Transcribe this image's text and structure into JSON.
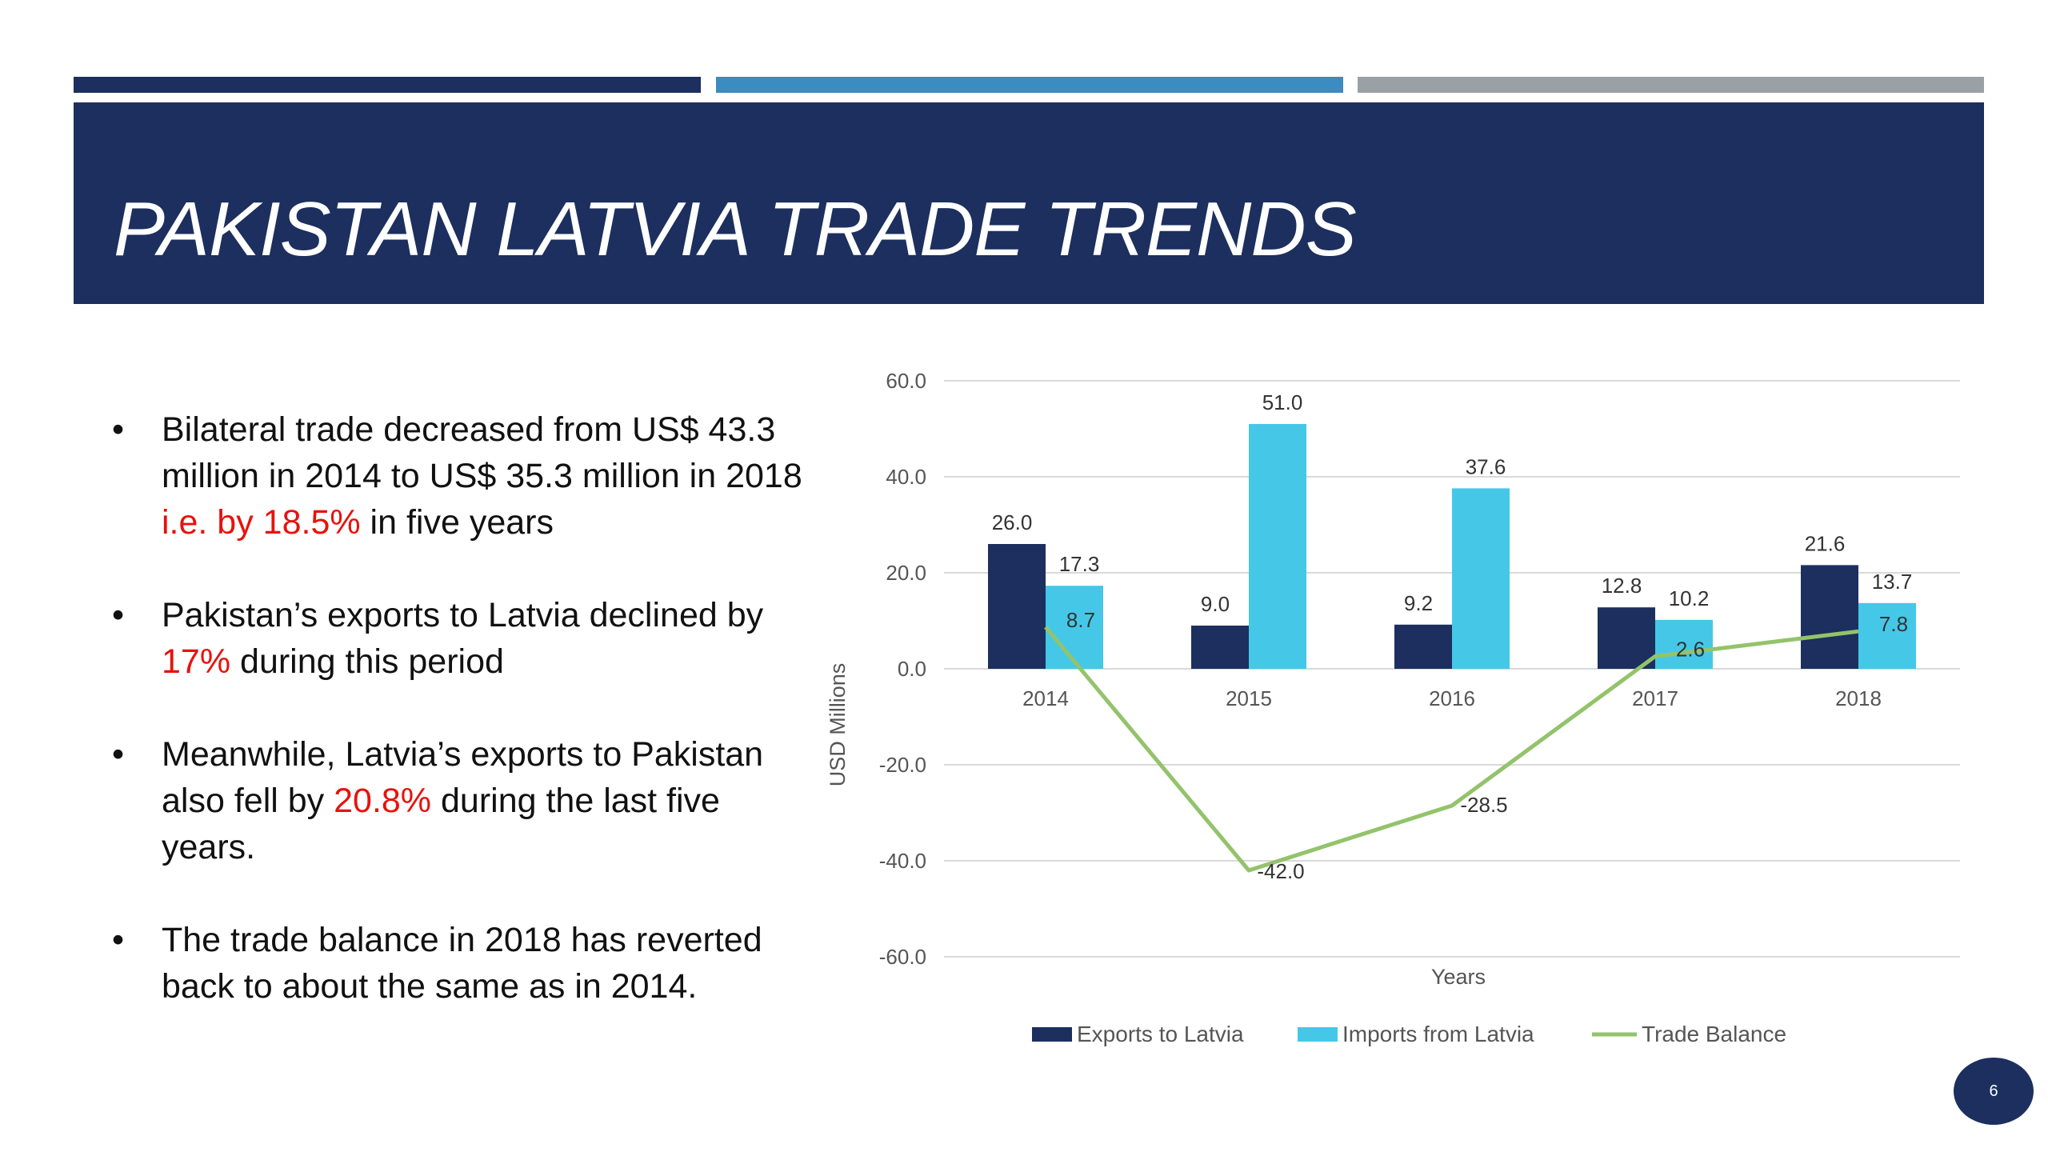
{
  "slide": {
    "title": "PAKISTAN LATVIA TRADE TRENDS",
    "page_number": "6",
    "colors": {
      "navy": "#1c2f5e",
      "blue": "#3b8cc0",
      "grey": "#9aa1a6",
      "highlight_red": "#e8120c"
    }
  },
  "bullets": [
    {
      "before": "Bilateral trade decreased from US$ 43.3 million in 2014 to US$ 35.3 million in 2018 ",
      "highlight": "i.e. by 18.5%",
      "after": " in five years"
    },
    {
      "before": "Pakistan’s exports to Latvia declined by ",
      "highlight": "17%",
      "after": " during this period"
    },
    {
      "before": "Meanwhile, Latvia’s exports to Pakistan also fell by ",
      "highlight": "20.8%",
      "after": " during the last five years."
    },
    {
      "before": "The trade balance in 2018 has reverted back to about the same as in 2014.",
      "highlight": "",
      "after": ""
    }
  ],
  "chart_data": {
    "type": "bar",
    "categories": [
      "2014",
      "2015",
      "2016",
      "2017",
      "2018"
    ],
    "series": [
      {
        "name": "Exports to Latvia",
        "kind": "bar",
        "color": "#1c2f5e",
        "values": [
          26.0,
          9.0,
          9.2,
          12.8,
          21.6
        ],
        "labels": [
          "26.0",
          "9.0",
          "9.2",
          "12.8",
          "21.6"
        ]
      },
      {
        "name": "Imports from Latvia",
        "kind": "bar",
        "color": "#45c8e8",
        "values": [
          17.3,
          51.0,
          37.6,
          10.2,
          13.7
        ],
        "labels": [
          "17.3",
          "51.0",
          "37.6",
          "10.2",
          "13.7"
        ]
      },
      {
        "name": "Trade Balance",
        "kind": "line",
        "color": "#93c36b",
        "values": [
          8.7,
          -42.0,
          -28.5,
          2.6,
          7.8
        ],
        "labels": [
          "8.7",
          "-42.0",
          "-28.5",
          "2.6",
          "7.8"
        ]
      }
    ],
    "xlabel": "Years",
    "ylabel": "USD Millions",
    "ylim": [
      -60,
      60
    ],
    "yticks": [
      60,
      40,
      20,
      0,
      -20,
      -40,
      -60
    ],
    "ytick_labels": [
      "60.0",
      "40.0",
      "20.0",
      "0.0",
      "-20.0",
      "-40.0",
      "-60.0"
    ],
    "grid": true,
    "legend_position": "bottom"
  }
}
